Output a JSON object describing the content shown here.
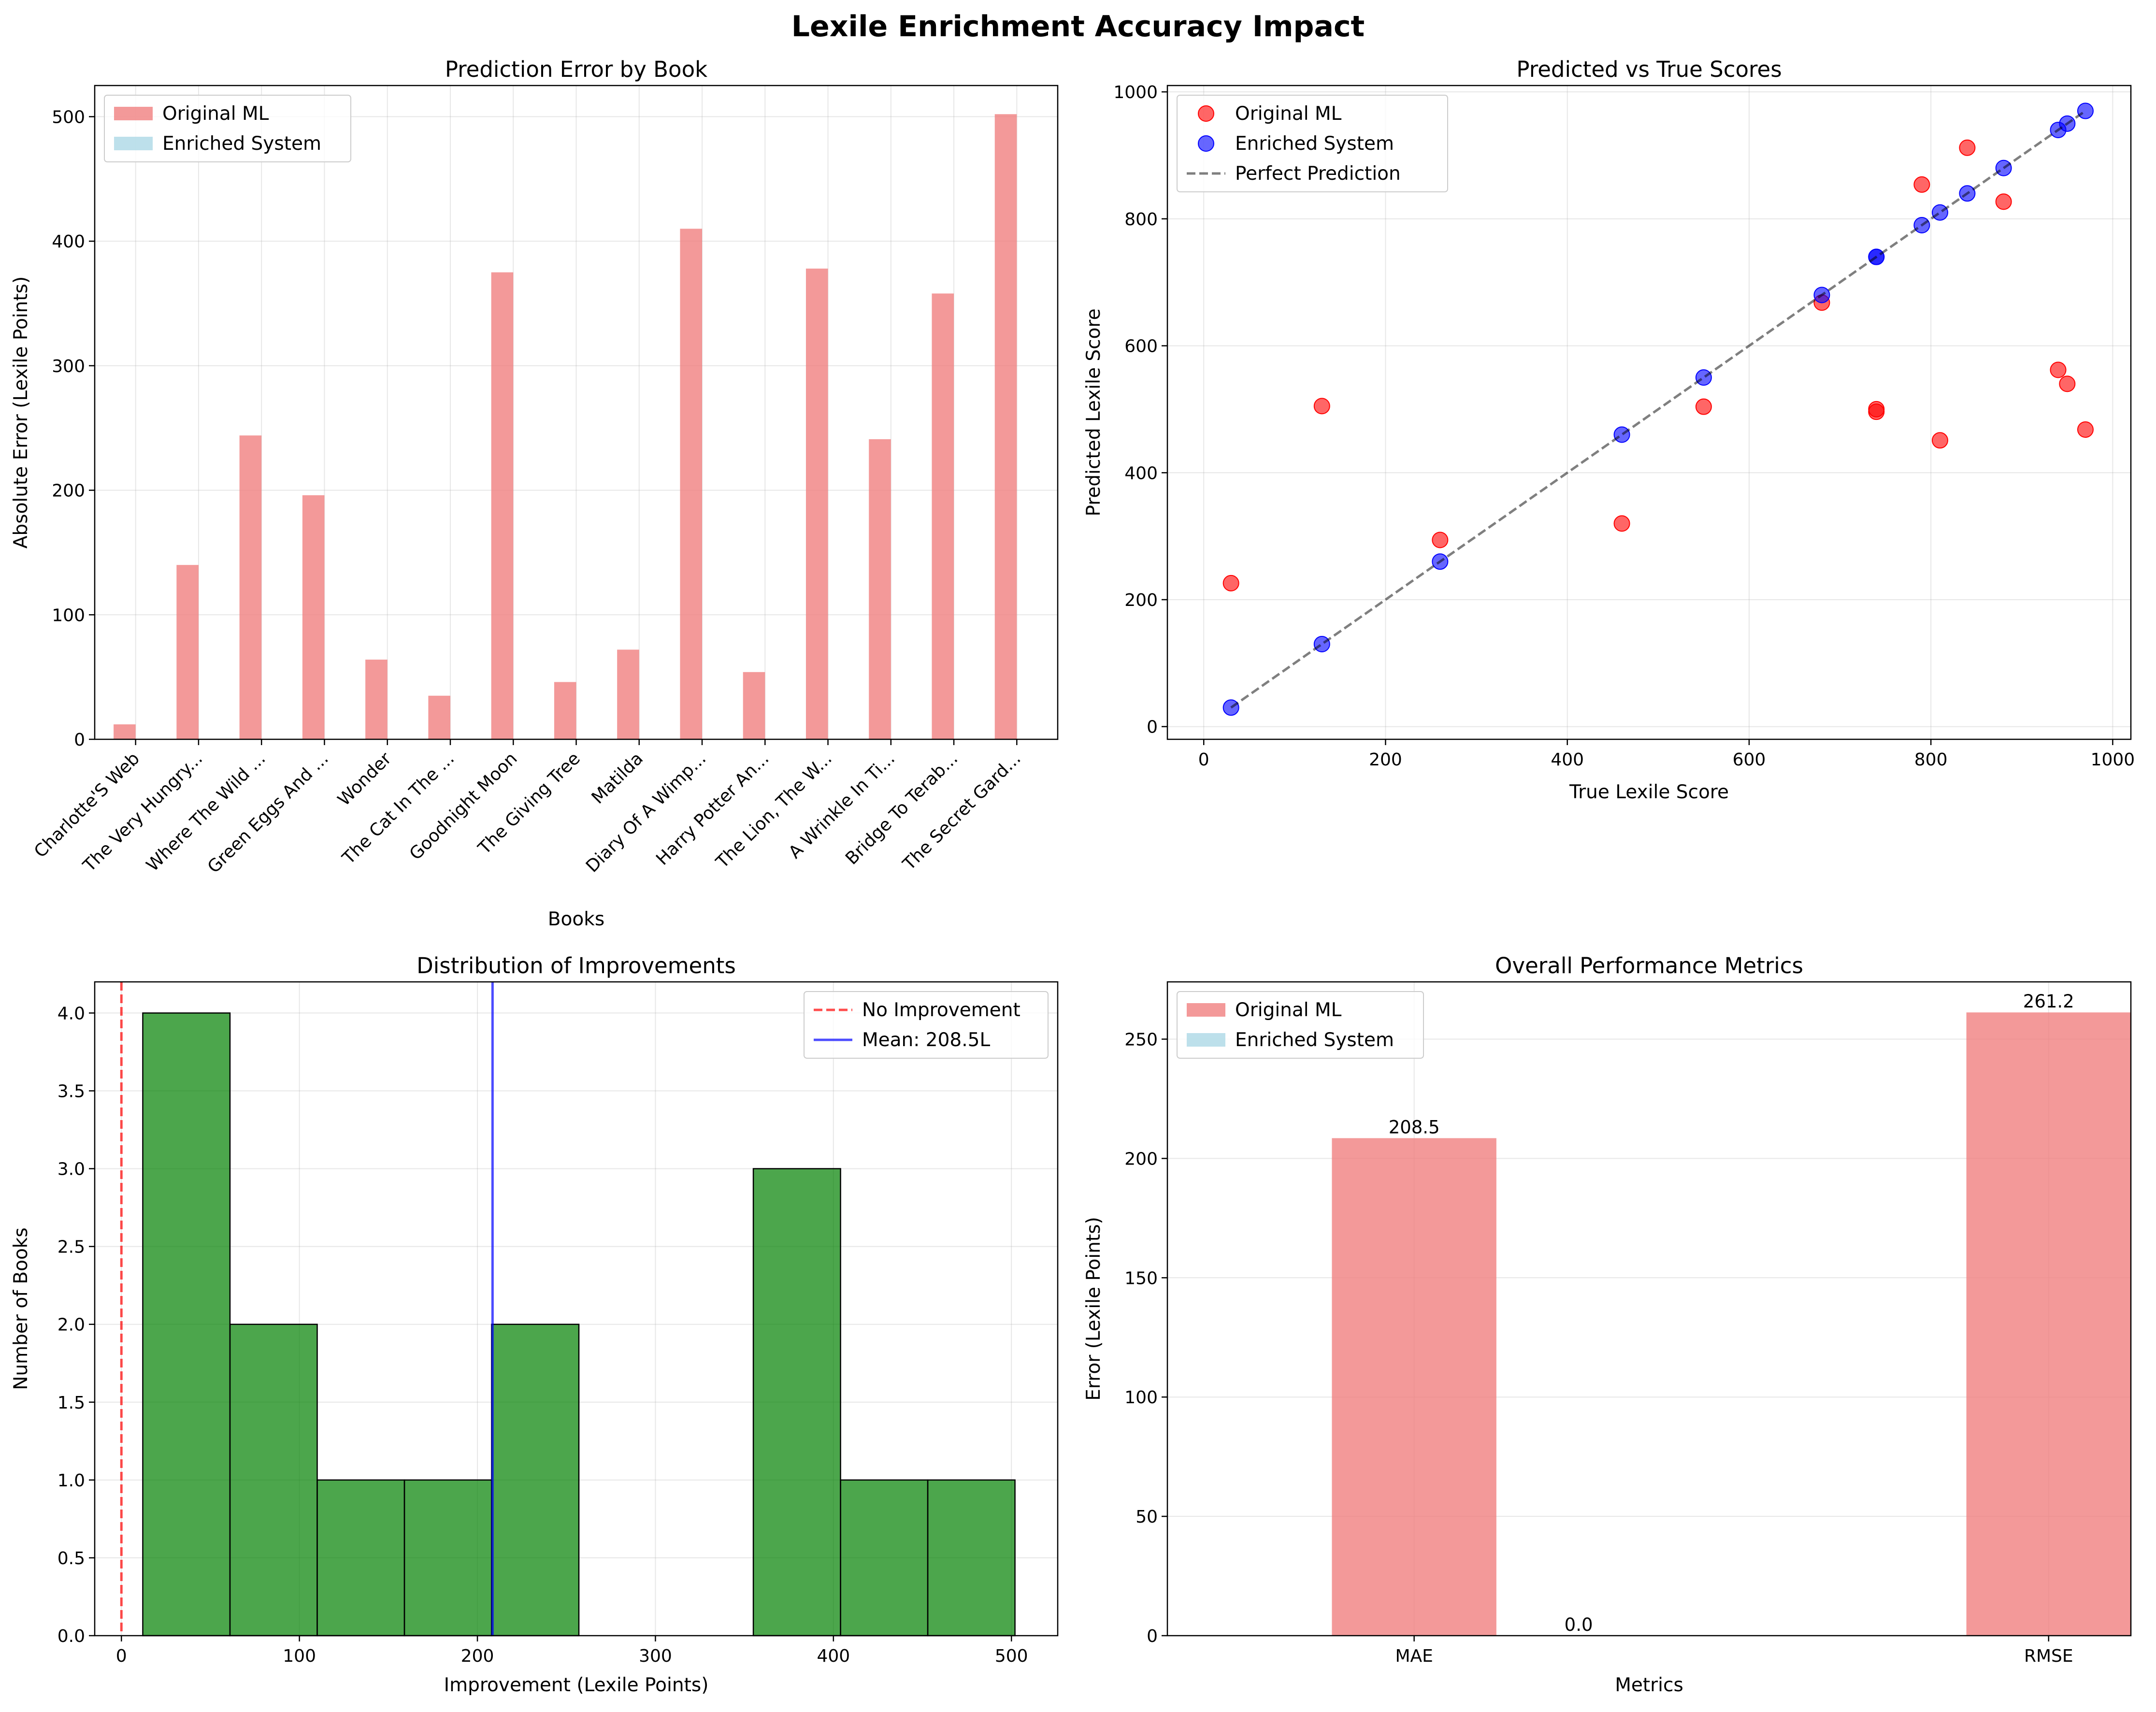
{
  "figure_title": "Lexile Enrichment Accuracy Impact",
  "colors": {
    "original": "#f08080",
    "enriched": "#add8e6",
    "scatter_original": "#ff0000",
    "scatter_enriched": "#0000ff",
    "hist": "#008000",
    "perfect": "#000000",
    "no_improvement": "#ff0000",
    "mean_line": "#0000ff"
  },
  "chart_data": [
    {
      "id": "error_by_book",
      "type": "bar",
      "title": "Prediction Error by Book",
      "xlabel": "Books",
      "ylabel": "Absolute Error (Lexile Points)",
      "ylim": [
        0,
        525
      ],
      "yticks": [
        0,
        100,
        200,
        300,
        400,
        500
      ],
      "categories": [
        "Charlotte'S Web",
        "The Very Hungry...",
        "Where The Wild ...",
        "Green Eggs And ...",
        "Wonder",
        "The Cat In The ...",
        "Goodnight Moon",
        "The Giving Tree",
        "Matilda",
        "Diary Of A Wimp...",
        "Harry Potter An...",
        "The Lion, The W...",
        "A Wrinkle In Ti...",
        "Bridge To Terab...",
        "The Secret Gard..."
      ],
      "series": [
        {
          "name": "Original ML",
          "values": [
            12,
            140,
            244,
            196,
            64,
            35,
            375,
            46,
            72,
            410,
            54,
            378,
            241,
            358,
            502
          ]
        },
        {
          "name": "Enriched System",
          "values": [
            0,
            0,
            0,
            0,
            0,
            0,
            0,
            0,
            0,
            0,
            0,
            0,
            0,
            0,
            0
          ]
        }
      ],
      "legend": "upper-left"
    },
    {
      "id": "pred_vs_true",
      "type": "scatter",
      "title": "Predicted vs True Scores",
      "xlabel": "True Lexile Score",
      "ylabel": "Predicted Lexile Score",
      "xlim": [
        -40,
        1020
      ],
      "ylim": [
        -20,
        1010
      ],
      "xticks": [
        0,
        200,
        400,
        600,
        800,
        1000
      ],
      "yticks": [
        0,
        200,
        400,
        600,
        800,
        1000
      ],
      "series": [
        {
          "name": "Original ML",
          "x": [
            30,
            130,
            260,
            460,
            550,
            680,
            740,
            740,
            790,
            810,
            840,
            880,
            940,
            950,
            970
          ],
          "y": [
            226,
            505,
            294,
            320,
            504,
            668,
            496,
            500,
            854,
            451,
            912,
            827,
            562,
            540,
            468
          ]
        },
        {
          "name": "Enriched System",
          "x": [
            30,
            130,
            260,
            460,
            550,
            680,
            740,
            740,
            790,
            810,
            840,
            880,
            940,
            950,
            970
          ],
          "y": [
            30,
            130,
            260,
            460,
            550,
            680,
            740,
            740,
            790,
            810,
            840,
            880,
            940,
            950,
            970
          ]
        }
      ],
      "reference_line": {
        "name": "Perfect Prediction",
        "x": [
          30,
          970
        ],
        "y": [
          30,
          970
        ]
      },
      "legend": "upper-left"
    },
    {
      "id": "improvements",
      "type": "bar",
      "subtype": "histogram",
      "title": "Distribution of Improvements",
      "xlabel": "Improvement (Lexile Points)",
      "ylabel": "Number of Books",
      "xlim": [
        -15,
        526
      ],
      "ylim": [
        0,
        4.2
      ],
      "xticks": [
        0,
        100,
        200,
        300,
        400,
        500
      ],
      "yticks": [
        "0.0",
        "0.5",
        "1.0",
        "1.5",
        "2.0",
        "2.5",
        "3.0",
        "3.5",
        "4.0"
      ],
      "bin_edges": [
        12,
        61,
        110,
        159,
        208,
        257,
        306,
        355,
        404,
        453,
        502
      ],
      "counts": [
        4,
        2,
        1,
        1,
        2,
        0,
        0,
        3,
        1,
        1
      ],
      "vlines": [
        {
          "name": "No Improvement",
          "x": 0,
          "style": "dashed"
        },
        {
          "name": "Mean: 208.5L",
          "x": 208.5,
          "style": "solid"
        }
      ],
      "legend": "upper-right"
    },
    {
      "id": "overall_metrics",
      "type": "bar",
      "title": "Overall Performance Metrics",
      "xlabel": "Metrics",
      "ylabel": "Error (Lexile Points)",
      "ylim": [
        0,
        274
      ],
      "yticks": [
        0,
        50,
        100,
        150,
        200,
        250
      ],
      "categories": [
        "MAE",
        "RMSE"
      ],
      "series": [
        {
          "name": "Original ML",
          "values": [
            208.5,
            261.2
          ],
          "labels": [
            "208.5",
            "261.2"
          ]
        },
        {
          "name": "Enriched System",
          "values": [
            0.0,
            0.0
          ],
          "labels": [
            "0.0",
            "0.0"
          ]
        }
      ],
      "legend": "upper-left"
    }
  ]
}
